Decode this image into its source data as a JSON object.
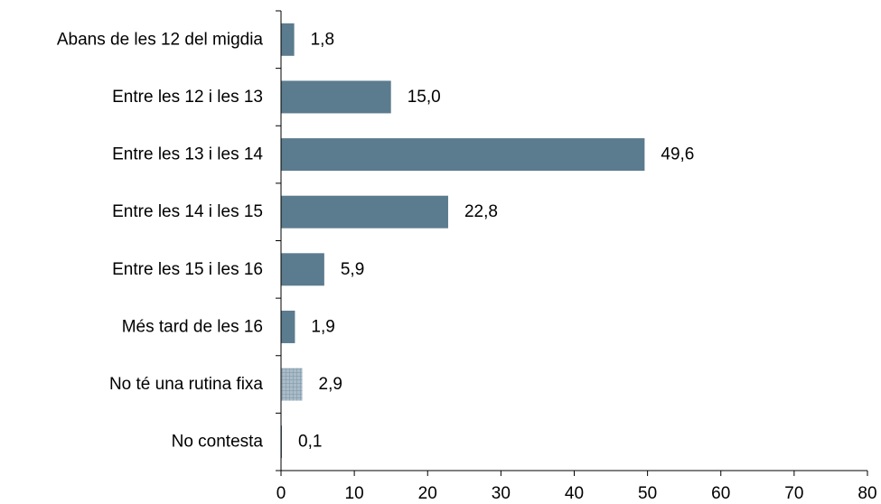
{
  "chart_data": {
    "type": "bar",
    "orientation": "horizontal",
    "categories": [
      "Abans de les 12 del migdia",
      "Entre les 12 i les 13",
      "Entre les 13 i les 14",
      "Entre les 14 i les 15",
      "Entre les 15 i les 16",
      "Més tard de les 16",
      "No té una rutina fixa",
      "No contesta"
    ],
    "values": [
      1.8,
      15.0,
      49.6,
      22.8,
      5.9,
      1.9,
      2.9,
      0.1
    ],
    "value_labels": [
      "1,8",
      "15,0",
      "49,6",
      "22,8",
      "5,9",
      "1,9",
      "2,9",
      "0,1"
    ],
    "bar_styles": [
      "solid",
      "solid",
      "solid",
      "solid",
      "solid",
      "solid",
      "hatched",
      "solid"
    ],
    "xlim": [
      0,
      80
    ],
    "x_ticks": [
      0,
      10,
      20,
      30,
      40,
      50,
      60,
      70,
      80
    ],
    "grid": false,
    "legend": "none",
    "title": "",
    "xlabel": "",
    "ylabel": "",
    "colors": {
      "bar": "#5b7b8e",
      "hatched_fill": "#a9bcc8",
      "hatched_line": "#7d95a3",
      "axis": "#000000"
    }
  }
}
